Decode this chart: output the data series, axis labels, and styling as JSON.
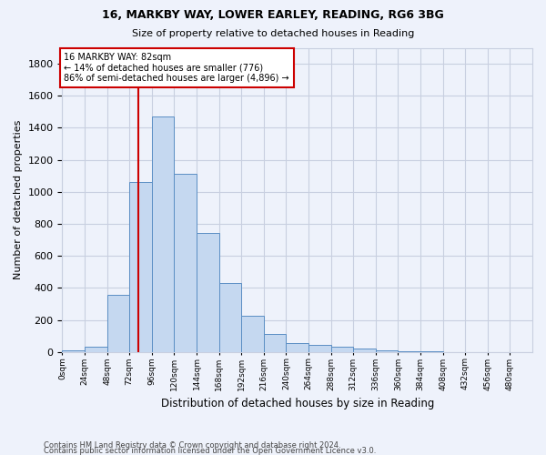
{
  "title1": "16, MARKBY WAY, LOWER EARLEY, READING, RG6 3BG",
  "title2": "Size of property relative to detached houses in Reading",
  "xlabel": "Distribution of detached houses by size in Reading",
  "ylabel": "Number of detached properties",
  "bar_color": "#c5d8f0",
  "bar_edge_color": "#5b8ec4",
  "categories": [
    "0sqm",
    "24sqm",
    "48sqm",
    "72sqm",
    "96sqm",
    "120sqm",
    "144sqm",
    "168sqm",
    "192sqm",
    "216sqm",
    "240sqm",
    "264sqm",
    "288sqm",
    "312sqm",
    "336sqm",
    "360sqm",
    "384sqm",
    "408sqm",
    "432sqm",
    "456sqm",
    "480sqm"
  ],
  "values": [
    10,
    35,
    355,
    1060,
    1470,
    1110,
    745,
    430,
    225,
    110,
    55,
    45,
    30,
    20,
    10,
    5,
    2,
    1,
    0,
    0,
    0
  ],
  "ylim": [
    0,
    1900
  ],
  "yticks": [
    0,
    200,
    400,
    600,
    800,
    1000,
    1200,
    1400,
    1600,
    1800
  ],
  "property_line_x": 82,
  "bin_width": 24,
  "annotation_text": "16 MARKBY WAY: 82sqm\n← 14% of detached houses are smaller (776)\n86% of semi-detached houses are larger (4,896) →",
  "annotation_box_color": "#ffffff",
  "annotation_box_edge": "#cc0000",
  "vline_color": "#cc0000",
  "footnote1": "Contains HM Land Registry data © Crown copyright and database right 2024.",
  "footnote2": "Contains public sector information licensed under the Open Government Licence v3.0.",
  "background_color": "#eef2fb",
  "grid_color": "#c8cfe0"
}
